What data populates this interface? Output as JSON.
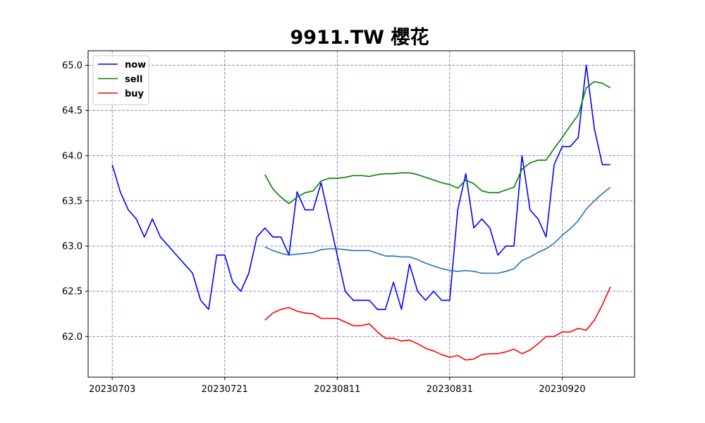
{
  "chart_data": {
    "type": "line",
    "title": "9911.TW 櫻花",
    "xlabel": "",
    "ylabel": "",
    "x_tick_labels": [
      "20230703",
      "20230721",
      "20230811",
      "20230831",
      "20230920"
    ],
    "x_tick_index": [
      0,
      14,
      28,
      42,
      56
    ],
    "x_range": [
      -3,
      65
    ],
    "y_range": [
      61.55,
      65.16
    ],
    "y_ticks": [
      62.0,
      62.5,
      63.0,
      63.5,
      64.0,
      64.5,
      65.0
    ],
    "y_tick_labels": [
      "62.0",
      "62.5",
      "63.0",
      "63.5",
      "64.0",
      "64.5",
      "65.0"
    ],
    "grid": true,
    "grid_color": "#6b6bd6",
    "legend_position": "top-left",
    "series": [
      {
        "name": "now",
        "color": "#0000ff",
        "start_index": 0,
        "values": [
          63.9,
          63.6,
          63.4,
          63.3,
          63.1,
          63.3,
          63.1,
          63.0,
          62.9,
          62.8,
          62.7,
          62.4,
          62.3,
          62.9,
          62.9,
          62.6,
          62.5,
          62.7,
          63.1,
          63.2,
          63.1,
          63.1,
          62.9,
          63.6,
          63.4,
          63.4,
          63.7,
          63.3,
          62.9,
          62.5,
          62.4,
          62.4,
          62.4,
          62.3,
          62.3,
          62.6,
          62.3,
          62.8,
          62.5,
          62.4,
          62.5,
          62.4,
          62.4,
          63.4,
          63.8,
          63.2,
          63.3,
          63.2,
          62.9,
          63.0,
          63.0,
          64.0,
          63.4,
          63.3,
          63.1,
          63.9,
          64.1,
          64.1,
          64.2,
          65.0,
          64.3,
          63.9,
          63.9
        ]
      },
      {
        "name": "sell",
        "color": "#008000",
        "start_index": 19,
        "values": [
          63.79,
          63.63,
          63.54,
          63.47,
          63.54,
          63.59,
          63.61,
          63.72,
          63.75,
          63.75,
          63.76,
          63.78,
          63.78,
          63.77,
          63.79,
          63.8,
          63.8,
          63.81,
          63.81,
          63.79,
          63.76,
          63.73,
          63.7,
          63.68,
          63.64,
          63.73,
          63.69,
          63.61,
          63.59,
          63.59,
          63.62,
          63.65,
          63.85,
          63.92,
          63.95,
          63.95,
          64.08,
          64.2,
          64.33,
          64.45,
          64.75,
          64.82,
          64.8,
          64.75
        ]
      },
      {
        "name": "",
        "color": "#1f77b4",
        "start_index": 19,
        "values": [
          62.99,
          62.95,
          62.92,
          62.9,
          62.91,
          62.92,
          62.93,
          62.96,
          62.97,
          62.97,
          62.96,
          62.95,
          62.95,
          62.95,
          62.92,
          62.89,
          62.89,
          62.88,
          62.88,
          62.85,
          62.81,
          62.78,
          62.75,
          62.73,
          62.72,
          62.73,
          62.72,
          62.7,
          62.7,
          62.7,
          62.72,
          62.75,
          62.84,
          62.88,
          62.93,
          62.97,
          63.03,
          63.12,
          63.19,
          63.28,
          63.41,
          63.5,
          63.58,
          63.65
        ]
      },
      {
        "name": "buy",
        "color": "#ff0000",
        "start_index": 19,
        "values": [
          62.18,
          62.26,
          62.3,
          62.32,
          62.28,
          62.26,
          62.25,
          62.2,
          62.2,
          62.2,
          62.16,
          62.12,
          62.12,
          62.14,
          62.05,
          61.98,
          61.98,
          61.95,
          61.96,
          61.92,
          61.87,
          61.84,
          61.8,
          61.77,
          61.79,
          61.74,
          61.75,
          61.8,
          61.81,
          61.81,
          61.83,
          61.86,
          61.81,
          61.85,
          61.92,
          62.0,
          62.0,
          62.05,
          62.05,
          62.09,
          62.07,
          62.18,
          62.35,
          62.55
        ]
      }
    ]
  }
}
